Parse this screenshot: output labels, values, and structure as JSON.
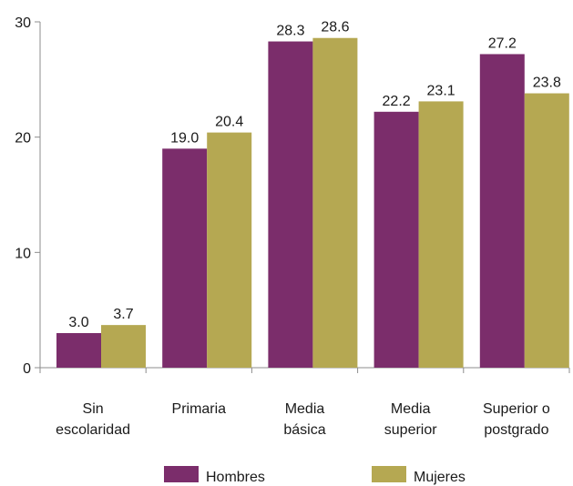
{
  "chart_data": {
    "type": "bar",
    "categories": [
      [
        "Sin",
        "escolaridad"
      ],
      [
        "Primaria"
      ],
      [
        "Media",
        "básica"
      ],
      [
        "Media",
        "superior"
      ],
      [
        "Superior o",
        "postgrado"
      ]
    ],
    "series": [
      {
        "name": "Hombres",
        "values": [
          3.0,
          19.0,
          28.3,
          22.2,
          27.2
        ],
        "value_labels": [
          "3.0",
          "19.0",
          "28.3",
          "22.2",
          "27.2"
        ],
        "color": "#7B2D6B"
      },
      {
        "name": "Mujeres",
        "values": [
          3.7,
          20.4,
          28.6,
          23.1,
          23.8
        ],
        "value_labels": [
          "3.7",
          "20.4",
          "28.6",
          "23.1",
          "23.8"
        ],
        "color": "#B5A852"
      }
    ],
    "yticks": [
      {
        "value": 0,
        "label": "0"
      },
      {
        "value": 10,
        "label": "10"
      },
      {
        "value": 20,
        "label": "20"
      },
      {
        "value": 30,
        "label": "30"
      }
    ],
    "ylim": [
      0,
      30
    ],
    "grid": false,
    "legend_position": "bottom"
  }
}
